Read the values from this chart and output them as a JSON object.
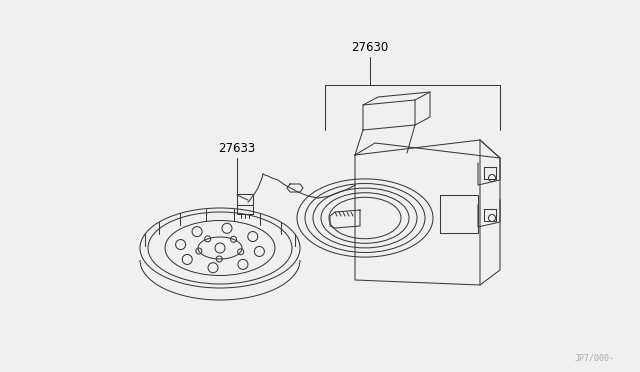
{
  "bg_color": "#f0f0ee",
  "line_color": "#3a3a3a",
  "label_27630": "27630",
  "label_27633": "27633",
  "watermark": "JP7/000-",
  "label_fontsize": 8.5,
  "wm_fontsize": 6,
  "lw": 0.75
}
